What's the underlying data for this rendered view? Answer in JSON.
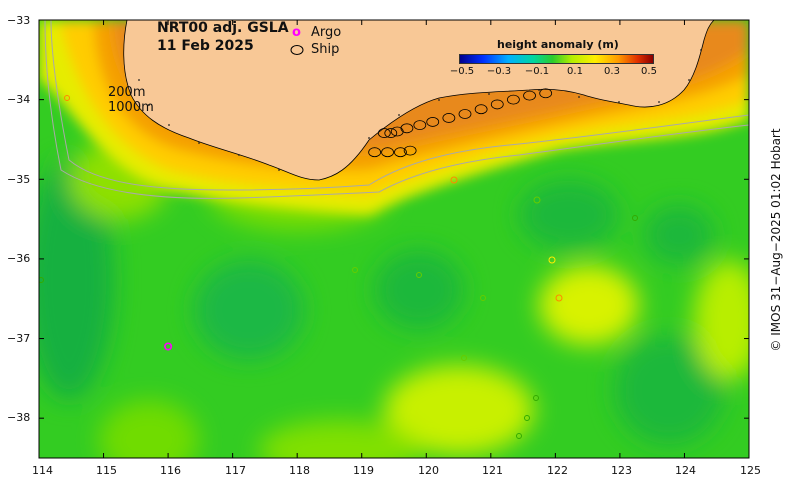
{
  "title": {
    "line1": "NRT00 adj. GSLA",
    "line2": "11 Feb 2025"
  },
  "legend": {
    "argo_symbol": "o",
    "argo_label": "Argo",
    "ship_label": "Ship"
  },
  "isobaths": {
    "shallow": "200m",
    "deep": "1000m"
  },
  "colorbar": {
    "title": "height anomaly (m)",
    "ticks": [
      "−0.5",
      "−0.3",
      "−0.1",
      "0.1",
      "0.3",
      "0.5"
    ],
    "range": [
      -0.5,
      0.5
    ]
  },
  "credit": "© IMOS 31−Aug−2025 01:02 Hobart",
  "axes": {
    "x_ticks": [
      "114",
      "115",
      "116",
      "117",
      "118",
      "119",
      "120",
      "121",
      "122",
      "123",
      "124",
      "125"
    ],
    "y_ticks": [
      "−33",
      "−34",
      "−35",
      "−36",
      "−37",
      "−38"
    ],
    "x_range": [
      114,
      125
    ],
    "y_range": [
      -38.5,
      -33
    ]
  },
  "colors": {
    "land": "#f8c896",
    "argo_marker": "#ff00ff",
    "ship_marker": "#000000",
    "isobath_line": "#a9a9a9"
  },
  "chart_data": {
    "type": "heatmap",
    "title": "NRT00 adj. GSLA",
    "subtitle": "11 Feb 2025",
    "xlabel": "",
    "ylabel": "",
    "colorbar_label": "height anomaly (m)",
    "xlim": [
      114,
      125
    ],
    "ylim": [
      -38.5,
      -33
    ],
    "argo_floats": [
      {
        "lon": 116.0,
        "lat": -37.1
      }
    ],
    "ship_track": [
      {
        "lon": 119.35,
        "lat": -34.42
      },
      {
        "lon": 119.45,
        "lat": -34.42
      },
      {
        "lon": 119.55,
        "lat": -34.4
      },
      {
        "lon": 119.7,
        "lat": -34.36
      },
      {
        "lon": 119.9,
        "lat": -34.32
      },
      {
        "lon": 120.1,
        "lat": -34.28
      },
      {
        "lon": 120.35,
        "lat": -34.23
      },
      {
        "lon": 120.6,
        "lat": -34.18
      },
      {
        "lon": 120.85,
        "lat": -34.12
      },
      {
        "lon": 121.1,
        "lat": -34.06
      },
      {
        "lon": 121.35,
        "lat": -34.0
      },
      {
        "lon": 121.6,
        "lat": -33.95
      },
      {
        "lon": 121.85,
        "lat": -33.92
      },
      {
        "lon": 119.2,
        "lat": -34.66
      },
      {
        "lon": 119.4,
        "lat": -34.66
      },
      {
        "lon": 119.6,
        "lat": -34.66
      },
      {
        "lon": 119.75,
        "lat": -34.64
      }
    ]
  }
}
